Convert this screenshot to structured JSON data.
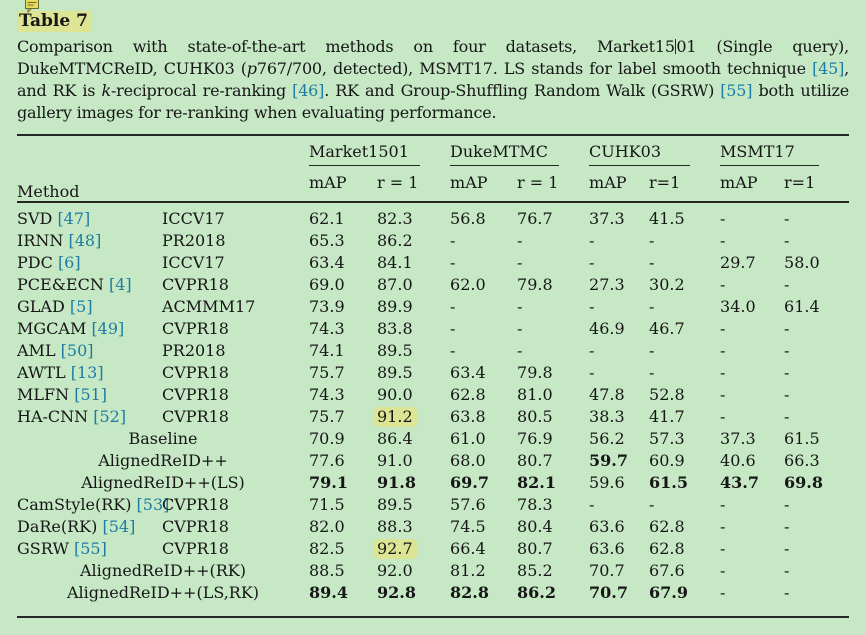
{
  "page": {
    "background": "#c6e8c5",
    "text_color": "#161616",
    "link_color": "#1e7ca3",
    "highlight_color": "#dde494"
  },
  "header": {
    "label": "Table 7",
    "note_icon": "comment-icon"
  },
  "caption": {
    "segments": [
      {
        "type": "text",
        "text": "Comparison with state-of-the-art methods on four datasets, Market15"
      },
      {
        "type": "caret",
        "text": ""
      },
      {
        "type": "text",
        "text": "01 (Single query), DukeMTMCReID, CUHK03 ("
      },
      {
        "type": "italic",
        "text": "p"
      },
      {
        "type": "text",
        "text": "767/700, detected), MSMT17. LS stands for label smooth technique "
      },
      {
        "type": "cite",
        "text": "[45]"
      },
      {
        "type": "text",
        "text": ", and RK is "
      },
      {
        "type": "italic",
        "text": "k"
      },
      {
        "type": "text",
        "text": "-reciprocal re-ranking "
      },
      {
        "type": "cite",
        "text": "[46]"
      },
      {
        "type": "text",
        "text": ". RK and Group-Shuffling Random Walk (GSRW) "
      },
      {
        "type": "cite",
        "text": "[55]"
      },
      {
        "type": "text",
        "text": " both utilize gallery images for re-ranking when evaluating performance."
      }
    ]
  },
  "table": {
    "method_header": "Method",
    "groups": [
      {
        "label": "Market1501",
        "sub": [
          "mAP",
          "r = 1"
        ]
      },
      {
        "label": "DukeMTMC",
        "sub": [
          "mAP",
          "r = 1"
        ]
      },
      {
        "label": "CUHK03",
        "sub": [
          "mAP",
          "r=1"
        ]
      },
      {
        "label": "MSMT17",
        "sub": [
          "mAP",
          "r=1"
        ]
      }
    ],
    "rows": [
      {
        "method": "SVD",
        "cite": "[47]",
        "venue": "ICCV17",
        "cells": [
          {
            "t": "62.1"
          },
          {
            "t": "82.3"
          },
          {
            "t": "56.8"
          },
          {
            "t": "76.7"
          },
          {
            "t": "37.3"
          },
          {
            "t": "41.5"
          },
          {
            "t": "-"
          },
          {
            "t": "-"
          }
        ]
      },
      {
        "method": "IRNN",
        "cite": "[48]",
        "venue": "PR2018",
        "cells": [
          {
            "t": "65.3"
          },
          {
            "t": "86.2"
          },
          {
            "t": "-"
          },
          {
            "t": "-"
          },
          {
            "t": "-"
          },
          {
            "t": "-"
          },
          {
            "t": "-"
          },
          {
            "t": "-"
          }
        ]
      },
      {
        "method": "PDC",
        "cite": "[6]",
        "venue": "ICCV17",
        "cells": [
          {
            "t": "63.4"
          },
          {
            "t": "84.1"
          },
          {
            "t": "-"
          },
          {
            "t": "-"
          },
          {
            "t": "-"
          },
          {
            "t": "-"
          },
          {
            "t": "29.7"
          },
          {
            "t": "58.0"
          }
        ]
      },
      {
        "method": "PCE&ECN",
        "cite": "[4]",
        "venue": "CVPR18",
        "cells": [
          {
            "t": "69.0"
          },
          {
            "t": "87.0"
          },
          {
            "t": "62.0"
          },
          {
            "t": "79.8"
          },
          {
            "t": "27.3"
          },
          {
            "t": "30.2"
          },
          {
            "t": "-"
          },
          {
            "t": "-"
          }
        ]
      },
      {
        "method": "GLAD",
        "cite": "[5]",
        "venue": "ACMMM17",
        "cells": [
          {
            "t": "73.9"
          },
          {
            "t": "89.9"
          },
          {
            "t": "-"
          },
          {
            "t": "-"
          },
          {
            "t": "-"
          },
          {
            "t": "-"
          },
          {
            "t": "34.0"
          },
          {
            "t": "61.4"
          }
        ]
      },
      {
        "method": "MGCAM",
        "cite": "[49]",
        "venue": "CVPR18",
        "cells": [
          {
            "t": "74.3"
          },
          {
            "t": "83.8"
          },
          {
            "t": "-"
          },
          {
            "t": "-"
          },
          {
            "t": "46.9"
          },
          {
            "t": "46.7"
          },
          {
            "t": "-"
          },
          {
            "t": "-"
          }
        ]
      },
      {
        "method": "AML",
        "cite": "[50]",
        "venue": "PR2018",
        "cells": [
          {
            "t": "74.1"
          },
          {
            "t": "89.5"
          },
          {
            "t": "-"
          },
          {
            "t": "-"
          },
          {
            "t": "-"
          },
          {
            "t": "-"
          },
          {
            "t": "-"
          },
          {
            "t": "-"
          }
        ]
      },
      {
        "method": "AWTL",
        "cite": "[13]",
        "venue": "CVPR18",
        "cells": [
          {
            "t": "75.7"
          },
          {
            "t": "89.5"
          },
          {
            "t": "63.4"
          },
          {
            "t": "79.8"
          },
          {
            "t": "-"
          },
          {
            "t": "-"
          },
          {
            "t": "-"
          },
          {
            "t": "-"
          }
        ]
      },
      {
        "method": "MLFN",
        "cite": "[51]",
        "venue": "CVPR18",
        "cells": [
          {
            "t": "74.3"
          },
          {
            "t": "90.0"
          },
          {
            "t": "62.8"
          },
          {
            "t": "81.0"
          },
          {
            "t": "47.8"
          },
          {
            "t": "52.8"
          },
          {
            "t": "-"
          },
          {
            "t": "-"
          }
        ]
      },
      {
        "method": "HA-CNN",
        "cite": "[52]",
        "venue": "CVPR18",
        "cells": [
          {
            "t": "75.7"
          },
          {
            "t": "91.2",
            "hl": true
          },
          {
            "t": "63.8"
          },
          {
            "t": "80.5"
          },
          {
            "t": "38.3"
          },
          {
            "t": "41.7"
          },
          {
            "t": "-"
          },
          {
            "t": "-"
          }
        ]
      },
      {
        "method": "Baseline",
        "span": true,
        "cells": [
          {
            "t": "70.9"
          },
          {
            "t": "86.4"
          },
          {
            "t": "61.0"
          },
          {
            "t": "76.9"
          },
          {
            "t": "56.2"
          },
          {
            "t": "57.3"
          },
          {
            "t": "37.3"
          },
          {
            "t": "61.5"
          }
        ]
      },
      {
        "method": "AlignedReID++",
        "span": true,
        "cells": [
          {
            "t": "77.6"
          },
          {
            "t": "91.0"
          },
          {
            "t": "68.0"
          },
          {
            "t": "80.7"
          },
          {
            "t": "59.7",
            "b": true
          },
          {
            "t": "60.9"
          },
          {
            "t": "40.6"
          },
          {
            "t": "66.3"
          }
        ]
      },
      {
        "method": "AlignedReID++(LS)",
        "span": true,
        "cells": [
          {
            "t": "79.1",
            "b": true
          },
          {
            "t": "91.8",
            "b": true
          },
          {
            "t": "69.7",
            "b": true
          },
          {
            "t": "82.1",
            "b": true
          },
          {
            "t": "59.6"
          },
          {
            "t": "61.5",
            "b": true
          },
          {
            "t": "43.7",
            "b": true
          },
          {
            "t": "69.8",
            "b": true
          }
        ]
      },
      {
        "method": "CamStyle(RK)",
        "cite": "[53]",
        "venue": "CVPR18",
        "cells": [
          {
            "t": "71.5"
          },
          {
            "t": "89.5"
          },
          {
            "t": "57.6"
          },
          {
            "t": "78.3"
          },
          {
            "t": "-"
          },
          {
            "t": "-"
          },
          {
            "t": "-"
          },
          {
            "t": "-"
          }
        ]
      },
      {
        "method": "DaRe(RK)",
        "cite": "[54]",
        "venue": "CVPR18",
        "cells": [
          {
            "t": "82.0"
          },
          {
            "t": "88.3"
          },
          {
            "t": "74.5"
          },
          {
            "t": "80.4"
          },
          {
            "t": "63.6"
          },
          {
            "t": "62.8"
          },
          {
            "t": "-"
          },
          {
            "t": "-"
          }
        ]
      },
      {
        "method": "GSRW",
        "cite": "[55]",
        "venue": "CVPR18",
        "cells": [
          {
            "t": "82.5"
          },
          {
            "t": "92.7",
            "hl": true
          },
          {
            "t": "66.4"
          },
          {
            "t": "80.7"
          },
          {
            "t": "63.6"
          },
          {
            "t": "62.8"
          },
          {
            "t": "-"
          },
          {
            "t": "-"
          }
        ]
      },
      {
        "method": "AlignedReID++(RK)",
        "span": true,
        "cells": [
          {
            "t": "88.5"
          },
          {
            "t": "92.0"
          },
          {
            "t": "81.2"
          },
          {
            "t": "85.2"
          },
          {
            "t": "70.7"
          },
          {
            "t": "67.6"
          },
          {
            "t": "-"
          },
          {
            "t": "-"
          }
        ]
      },
      {
        "method": "AlignedReID++(LS,RK)",
        "span": true,
        "cells": [
          {
            "t": "89.4",
            "b": true
          },
          {
            "t": "92.8",
            "b": true
          },
          {
            "t": "82.8",
            "b": true
          },
          {
            "t": "86.2",
            "b": true
          },
          {
            "t": "70.7",
            "b": true
          },
          {
            "t": "67.9",
            "b": true
          },
          {
            "t": "-"
          },
          {
            "t": "-"
          }
        ]
      }
    ]
  }
}
